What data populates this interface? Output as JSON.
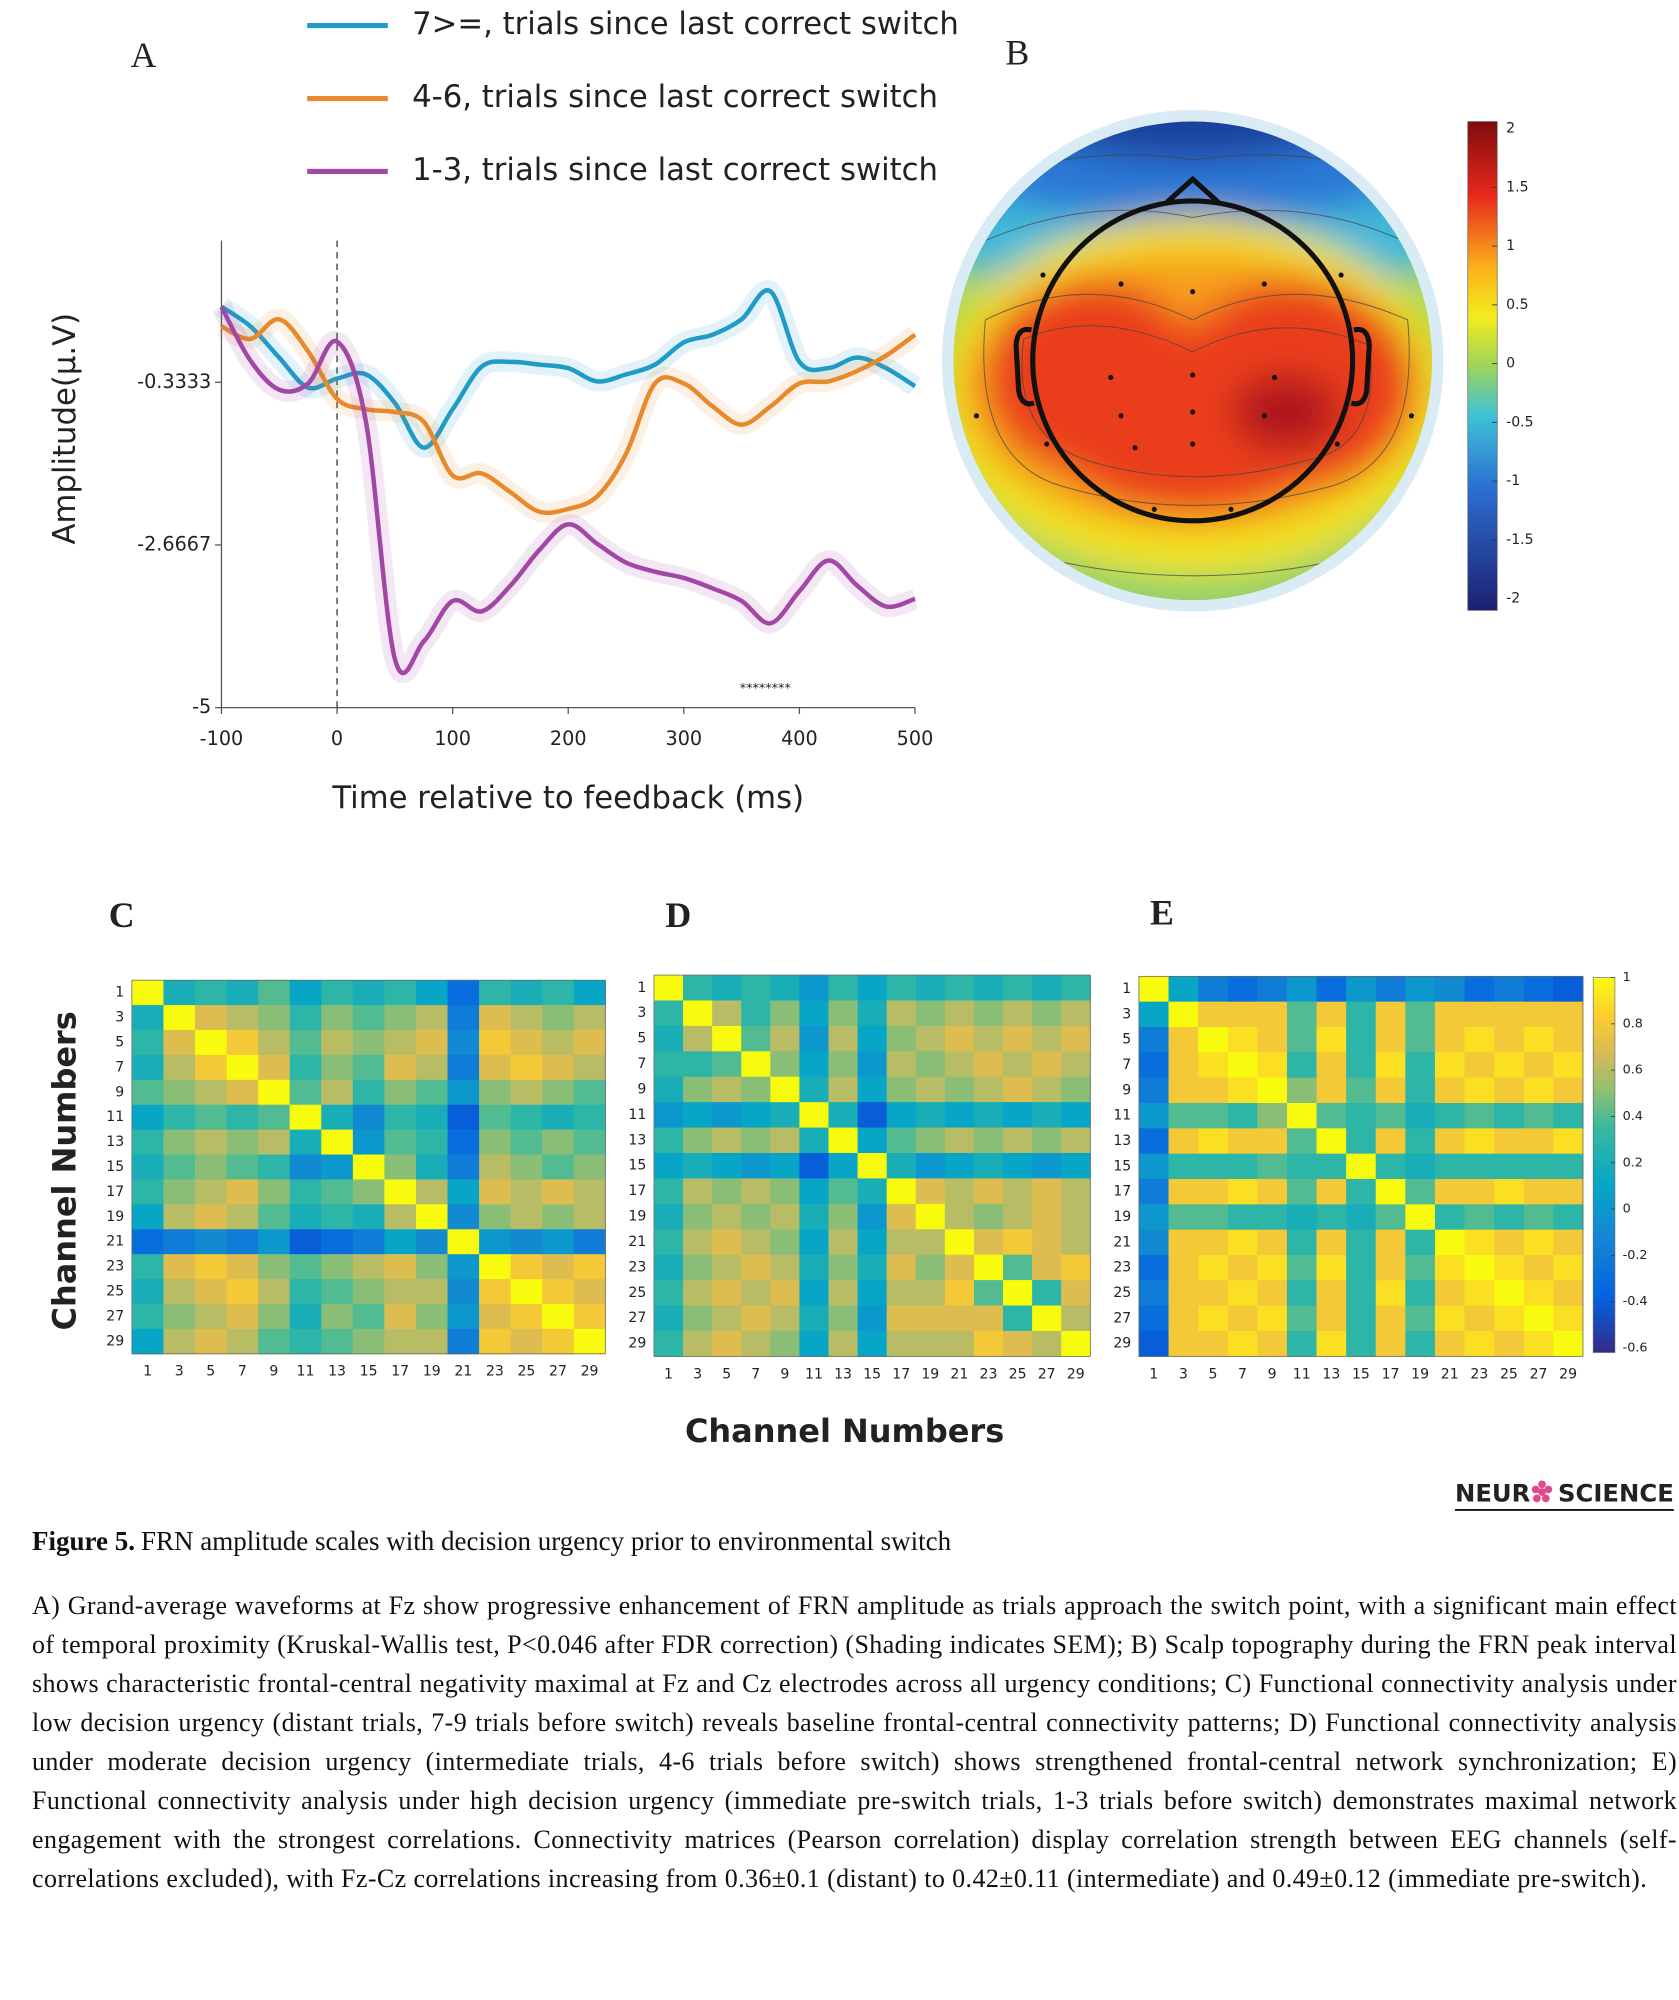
{
  "chart_data": [
    {
      "type": "line",
      "panel": "A",
      "xlabel": "Time relative to feedback (ms)",
      "ylabel": "Amplitude(µ.V)",
      "x": [
        -100,
        -75,
        -50,
        -25,
        0,
        25,
        50,
        75,
        100,
        125,
        150,
        175,
        200,
        225,
        250,
        275,
        300,
        325,
        350,
        375,
        400,
        425,
        450,
        475,
        500
      ],
      "series": [
        {
          "name": "7>=, trials since last correct switch",
          "color": "#1f9bc8",
          "values": [
            0.75,
            0.47,
            0.02,
            -0.41,
            -0.28,
            -0.22,
            -0.63,
            -1.27,
            -0.72,
            -0.11,
            -0.04,
            -0.08,
            -0.13,
            -0.32,
            -0.22,
            -0.08,
            0.24,
            0.35,
            0.57,
            0.97,
            -0.04,
            -0.13,
            0.02,
            -0.13,
            -0.39
          ]
        },
        {
          "name": "4-6, trials since last correct switch",
          "color": "#e8892b",
          "values": [
            0.47,
            0.29,
            0.57,
            0.11,
            -0.57,
            -0.72,
            -0.76,
            -0.9,
            -1.67,
            -1.64,
            -1.91,
            -2.19,
            -2.15,
            -1.97,
            -1.36,
            -0.35,
            -0.35,
            -0.68,
            -0.94,
            -0.68,
            -0.35,
            -0.32,
            -0.17,
            0.05,
            0.35
          ]
        },
        {
          "name": "1-3, trials since last correct switch",
          "color": "#a347a7",
          "values": [
            0.75,
            -0.02,
            -0.44,
            -0.35,
            0.25,
            -0.9,
            -4.3,
            -4.05,
            -3.47,
            -3.62,
            -3.25,
            -2.74,
            -2.37,
            -2.65,
            -2.92,
            -3.05,
            -3.14,
            -3.29,
            -3.47,
            -3.79,
            -3.33,
            -2.89,
            -3.25,
            -3.55,
            -3.44
          ]
        }
      ],
      "xlim": [
        -100,
        500
      ],
      "xticks": [
        -100,
        0,
        100,
        200,
        300,
        400,
        500
      ],
      "ylim": [
        -5,
        1.7
      ],
      "yticks": [
        -5,
        -2.6667,
        -0.3333
      ],
      "reference_line_x": 0,
      "annotation": "********"
    },
    {
      "type": "topomap",
      "panel": "B",
      "clim": [
        -2.1,
        2.06
      ],
      "cticks": [
        2,
        1.5,
        1,
        0.5,
        0,
        -0.5,
        -1,
        -1.5,
        -2
      ]
    },
    {
      "type": "heatmap",
      "panel": "C",
      "colormap": "parula",
      "clim": [
        -0.62,
        1
      ],
      "colorbar": false,
      "ylabel": "Channel Numbers",
      "categories": [
        "1",
        "3",
        "5",
        "7",
        "9",
        "11",
        "13",
        "15",
        "17",
        "19",
        "21",
        "23",
        "25",
        "27",
        "29"
      ],
      "matrix": [
        [
          1,
          0.2,
          0.3,
          0.2,
          0.4,
          0.1,
          0.3,
          0.2,
          0.3,
          0.1,
          -0.3,
          0.3,
          0.2,
          0.3,
          0.1
        ],
        [
          0.2,
          1,
          0.7,
          0.6,
          0.5,
          0.3,
          0.5,
          0.4,
          0.5,
          0.6,
          -0.2,
          0.7,
          0.6,
          0.5,
          0.6
        ],
        [
          0.3,
          0.7,
          1,
          0.8,
          0.6,
          0.4,
          0.6,
          0.5,
          0.6,
          0.7,
          -0.1,
          0.8,
          0.7,
          0.6,
          0.7
        ],
        [
          0.2,
          0.6,
          0.8,
          1,
          0.7,
          0.3,
          0.5,
          0.4,
          0.7,
          0.6,
          -0.2,
          0.7,
          0.8,
          0.7,
          0.6
        ],
        [
          0.4,
          0.5,
          0.6,
          0.7,
          1,
          0.4,
          0.6,
          0.3,
          0.5,
          0.4,
          0.0,
          0.5,
          0.6,
          0.5,
          0.4
        ],
        [
          0.1,
          0.3,
          0.4,
          0.3,
          0.4,
          1,
          0.2,
          -0.1,
          0.3,
          0.2,
          -0.4,
          0.4,
          0.3,
          0.2,
          0.3
        ],
        [
          0.3,
          0.5,
          0.6,
          0.5,
          0.6,
          0.2,
          1,
          0.0,
          0.4,
          0.3,
          -0.3,
          0.5,
          0.4,
          0.5,
          0.4
        ],
        [
          0.2,
          0.4,
          0.5,
          0.4,
          0.3,
          -0.1,
          0.0,
          1,
          0.5,
          0.2,
          -0.2,
          0.6,
          0.5,
          0.4,
          0.5
        ],
        [
          0.3,
          0.5,
          0.6,
          0.7,
          0.5,
          0.3,
          0.4,
          0.5,
          1,
          0.6,
          0.1,
          0.7,
          0.6,
          0.7,
          0.6
        ],
        [
          0.1,
          0.6,
          0.7,
          0.6,
          0.4,
          0.2,
          0.3,
          0.2,
          0.6,
          1,
          -0.1,
          0.5,
          0.6,
          0.5,
          0.6
        ],
        [
          -0.3,
          -0.2,
          -0.1,
          -0.2,
          0.0,
          -0.4,
          -0.3,
          -0.2,
          0.1,
          -0.1,
          1,
          0.0,
          -0.1,
          0.0,
          -0.2
        ],
        [
          0.3,
          0.7,
          0.8,
          0.7,
          0.5,
          0.4,
          0.5,
          0.6,
          0.7,
          0.5,
          0.0,
          1,
          0.8,
          0.7,
          0.8
        ],
        [
          0.2,
          0.6,
          0.7,
          0.8,
          0.6,
          0.3,
          0.4,
          0.5,
          0.6,
          0.6,
          -0.1,
          0.8,
          1,
          0.8,
          0.7
        ],
        [
          0.3,
          0.5,
          0.6,
          0.7,
          0.5,
          0.2,
          0.5,
          0.4,
          0.7,
          0.5,
          0.0,
          0.7,
          0.8,
          1,
          0.8
        ],
        [
          0.1,
          0.6,
          0.7,
          0.6,
          0.4,
          0.3,
          0.4,
          0.5,
          0.6,
          0.6,
          -0.2,
          0.8,
          0.7,
          0.8,
          1
        ]
      ]
    },
    {
      "type": "heatmap",
      "panel": "D",
      "colormap": "parula",
      "clim": [
        -0.62,
        1
      ],
      "colorbar": false,
      "xlabel": "Channel Numbers",
      "categories": [
        "1",
        "3",
        "5",
        "7",
        "9",
        "11",
        "13",
        "15",
        "17",
        "19",
        "21",
        "23",
        "25",
        "27",
        "29"
      ],
      "matrix": [
        [
          1,
          0.3,
          0.2,
          0.3,
          0.2,
          0.0,
          0.3,
          0.1,
          0.3,
          0.2,
          0.3,
          0.2,
          0.3,
          0.2,
          0.3
        ],
        [
          0.3,
          1,
          0.6,
          0.3,
          0.5,
          0.1,
          0.5,
          0.2,
          0.6,
          0.5,
          0.6,
          0.5,
          0.6,
          0.5,
          0.6
        ],
        [
          0.2,
          0.6,
          1,
          0.4,
          0.6,
          0.0,
          0.6,
          0.1,
          0.5,
          0.6,
          0.7,
          0.6,
          0.7,
          0.6,
          0.7
        ],
        [
          0.3,
          0.3,
          0.4,
          1,
          0.5,
          0.1,
          0.5,
          0.0,
          0.6,
          0.5,
          0.6,
          0.7,
          0.6,
          0.7,
          0.6
        ],
        [
          0.2,
          0.5,
          0.6,
          0.5,
          1,
          0.2,
          0.6,
          0.1,
          0.5,
          0.6,
          0.5,
          0.6,
          0.7,
          0.6,
          0.5
        ],
        [
          0.0,
          0.1,
          0.0,
          0.1,
          0.2,
          1,
          0.2,
          -0.4,
          0.1,
          0.2,
          0.1,
          0.2,
          0.1,
          0.2,
          0.1
        ],
        [
          0.3,
          0.5,
          0.6,
          0.5,
          0.6,
          0.2,
          1,
          0.1,
          0.4,
          0.5,
          0.6,
          0.5,
          0.6,
          0.5,
          0.6
        ],
        [
          0.1,
          0.2,
          0.1,
          0.0,
          0.1,
          -0.4,
          0.1,
          1,
          0.2,
          0.0,
          0.1,
          0.2,
          0.1,
          0.0,
          0.1
        ],
        [
          0.3,
          0.6,
          0.5,
          0.6,
          0.5,
          0.1,
          0.4,
          0.2,
          1,
          0.7,
          0.6,
          0.7,
          0.6,
          0.7,
          0.6
        ],
        [
          0.2,
          0.5,
          0.6,
          0.5,
          0.6,
          0.2,
          0.5,
          0.0,
          0.7,
          1,
          0.6,
          0.5,
          0.6,
          0.7,
          0.6
        ],
        [
          0.3,
          0.6,
          0.7,
          0.6,
          0.5,
          0.1,
          0.6,
          0.1,
          0.6,
          0.6,
          1,
          0.7,
          0.8,
          0.7,
          0.6
        ],
        [
          0.2,
          0.5,
          0.6,
          0.7,
          0.6,
          0.2,
          0.5,
          0.2,
          0.7,
          0.5,
          0.7,
          1,
          0.4,
          0.7,
          0.8
        ],
        [
          0.3,
          0.6,
          0.7,
          0.6,
          0.7,
          0.1,
          0.6,
          0.1,
          0.6,
          0.6,
          0.8,
          0.4,
          1,
          0.3,
          0.7
        ],
        [
          0.2,
          0.5,
          0.6,
          0.7,
          0.6,
          0.2,
          0.5,
          0.0,
          0.7,
          0.7,
          0.7,
          0.7,
          0.3,
          1,
          0.6
        ],
        [
          0.3,
          0.6,
          0.7,
          0.6,
          0.5,
          0.1,
          0.6,
          0.1,
          0.6,
          0.6,
          0.6,
          0.8,
          0.7,
          0.6,
          1
        ]
      ]
    },
    {
      "type": "heatmap",
      "panel": "E",
      "colormap": "parula",
      "clim": [
        -0.62,
        1
      ],
      "colorbar": true,
      "cticks": [
        1,
        0.8,
        0.6,
        0.4,
        0.2,
        0,
        -0.2,
        -0.4,
        -0.6
      ],
      "categories": [
        "1",
        "3",
        "5",
        "7",
        "9",
        "11",
        "13",
        "15",
        "17",
        "19",
        "21",
        "23",
        "25",
        "27",
        "29"
      ],
      "matrix": [
        [
          1,
          0.1,
          -0.2,
          -0.3,
          -0.2,
          0.0,
          -0.3,
          0.0,
          -0.2,
          0.0,
          -0.1,
          -0.3,
          -0.2,
          -0.3,
          -0.4
        ],
        [
          0.1,
          1,
          0.8,
          0.8,
          0.8,
          0.4,
          0.8,
          0.3,
          0.8,
          0.4,
          0.8,
          0.8,
          0.8,
          0.8,
          0.8
        ],
        [
          -0.2,
          0.8,
          1,
          0.9,
          0.8,
          0.4,
          0.9,
          0.3,
          0.8,
          0.4,
          0.8,
          0.9,
          0.8,
          0.9,
          0.8
        ],
        [
          -0.3,
          0.8,
          0.9,
          1,
          0.9,
          0.3,
          0.8,
          0.3,
          0.9,
          0.3,
          0.9,
          0.8,
          0.9,
          0.8,
          0.9
        ],
        [
          -0.2,
          0.8,
          0.8,
          0.9,
          1,
          0.5,
          0.8,
          0.4,
          0.8,
          0.3,
          0.8,
          0.9,
          0.8,
          0.9,
          0.8
        ],
        [
          0.0,
          0.4,
          0.4,
          0.3,
          0.5,
          1,
          0.4,
          0.3,
          0.4,
          0.2,
          0.3,
          0.4,
          0.3,
          0.4,
          0.3
        ],
        [
          -0.3,
          0.8,
          0.9,
          0.8,
          0.8,
          0.4,
          1,
          0.3,
          0.8,
          0.3,
          0.8,
          0.9,
          0.8,
          0.8,
          0.9
        ],
        [
          0.0,
          0.3,
          0.3,
          0.3,
          0.4,
          0.3,
          0.3,
          1,
          0.3,
          0.2,
          0.3,
          0.3,
          0.3,
          0.3,
          0.3
        ],
        [
          -0.2,
          0.8,
          0.8,
          0.9,
          0.8,
          0.4,
          0.8,
          0.3,
          1,
          0.4,
          0.8,
          0.8,
          0.9,
          0.8,
          0.8
        ],
        [
          0.0,
          0.4,
          0.4,
          0.3,
          0.3,
          0.2,
          0.3,
          0.2,
          0.4,
          1,
          0.3,
          0.4,
          0.3,
          0.4,
          0.3
        ],
        [
          -0.1,
          0.8,
          0.8,
          0.9,
          0.8,
          0.3,
          0.8,
          0.3,
          0.8,
          0.3,
          1,
          0.9,
          0.8,
          0.9,
          0.8
        ],
        [
          -0.3,
          0.8,
          0.9,
          0.8,
          0.9,
          0.4,
          0.9,
          0.3,
          0.8,
          0.4,
          0.9,
          1,
          0.9,
          0.8,
          0.9
        ],
        [
          -0.2,
          0.8,
          0.8,
          0.9,
          0.8,
          0.3,
          0.8,
          0.3,
          0.9,
          0.3,
          0.8,
          0.9,
          1,
          0.9,
          0.8
        ],
        [
          -0.3,
          0.8,
          0.9,
          0.8,
          0.9,
          0.4,
          0.8,
          0.3,
          0.8,
          0.4,
          0.9,
          0.8,
          0.9,
          1,
          0.9
        ],
        [
          -0.4,
          0.8,
          0.8,
          0.9,
          0.8,
          0.3,
          0.9,
          0.3,
          0.8,
          0.3,
          0.8,
          0.9,
          0.8,
          0.9,
          1
        ]
      ]
    }
  ],
  "logo": {
    "left": "NEUR",
    "right": "SCIENCE"
  },
  "caption": {
    "label": "Figure 5.",
    "title": "FRN amplitude scales with decision urgency prior to environmental switch",
    "body": "A) Grand-average waveforms at Fz show progressive enhancement of FRN amplitude as trials approach the switch point, with a significant main effect of temporal proximity (Kruskal-Wallis test, P<0.046 after FDR correction) (Shading indicates SEM); B) Scalp topography during the FRN peak interval shows characteristic frontal-central negativity maximal at Fz and Cz electrodes across all urgency conditions; C) Functional connectivity analysis under low decision urgency (distant trials, 7-9 trials before switch) reveals baseline frontal-central connectivity patterns; D) Functional connectivity analysis under moderate decision urgency (intermediate trials, 4-6 trials before switch) shows strengthened frontal-central network synchronization; E) Functional connectivity analysis under high decision urgency (immediate pre-switch trials, 1-3 trials before switch) demonstrates maximal network engagement with the strongest correlations. Connectivity matrices (Pearson correlation) display correlation strength between EEG channels (self-correlations excluded), with Fz-Cz correlations increasing from 0.36±0.1 (distant) to 0.42±0.11 (intermediate) and 0.49±0.12 (immediate pre-switch)."
  }
}
